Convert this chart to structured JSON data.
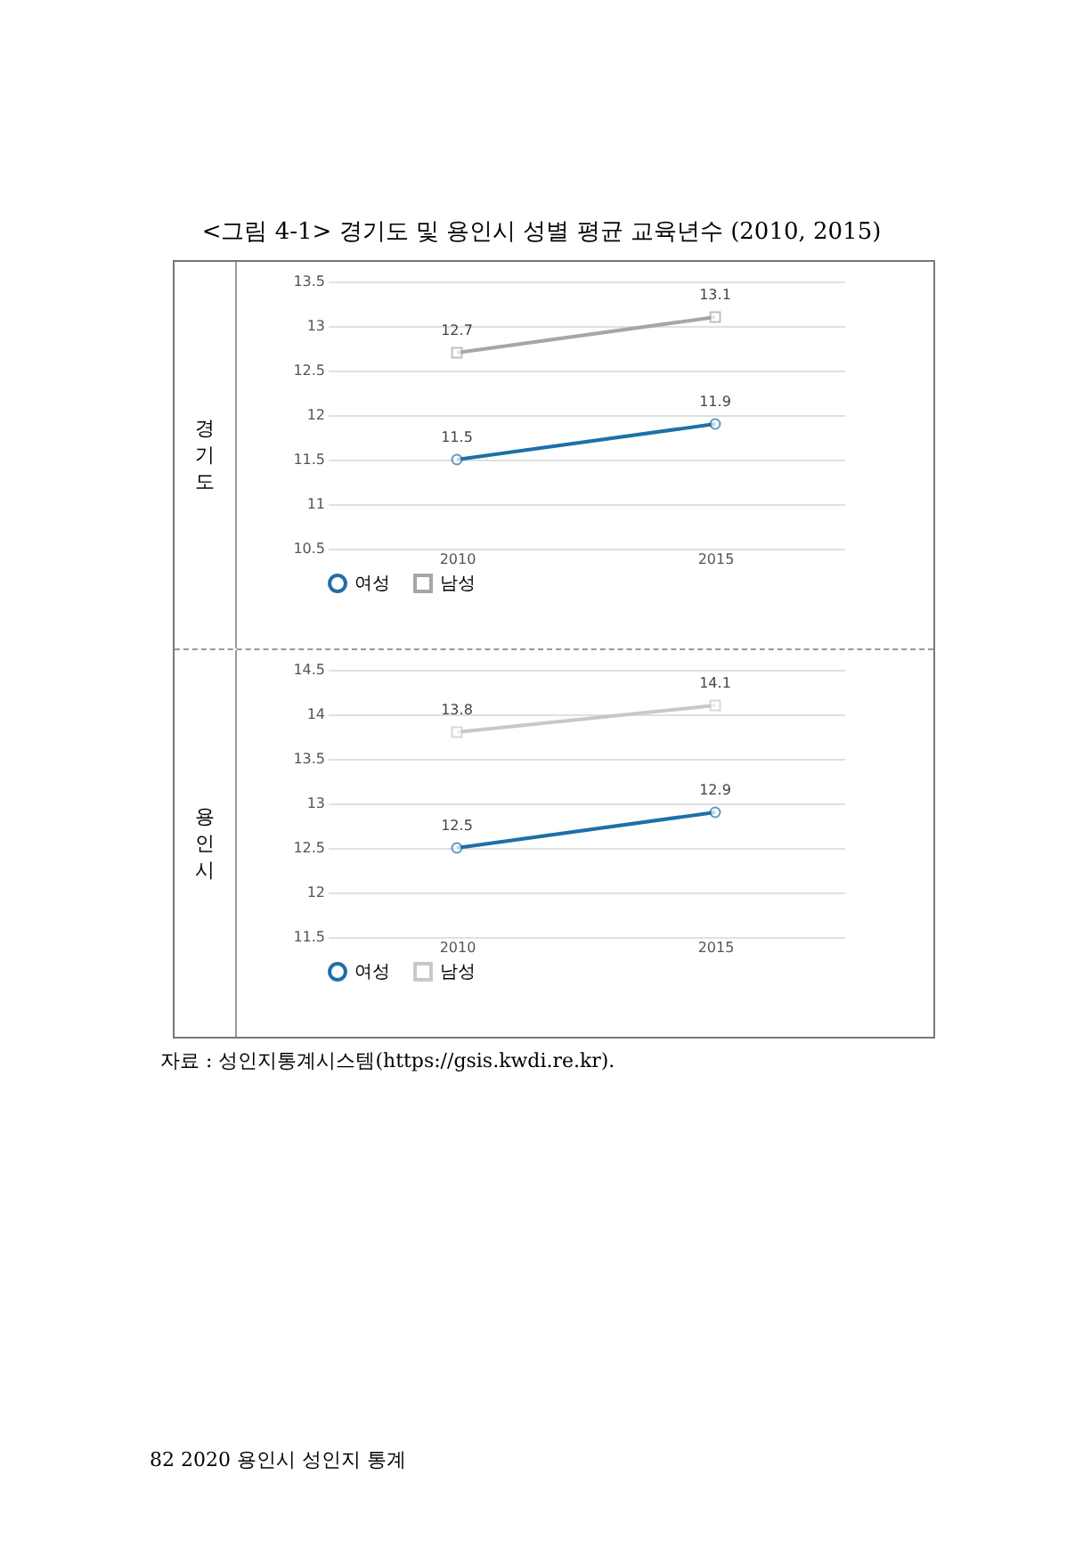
{
  "chart_data": [
    {
      "type": "line",
      "title": "<그림 4-1> 경기도 및 용인시 성별 평균 교육년수 (2010, 2015)",
      "ylabel": "경기도",
      "categories": [
        "2010",
        "2015"
      ],
      "series": [
        {
          "name": "여성",
          "color": "#1f6fa8",
          "values": [
            11.5,
            11.9
          ]
        },
        {
          "name": "남성",
          "color": "#a6a6a6",
          "values": [
            12.7,
            13.1
          ],
          "marker": "square"
        }
      ],
      "ylim": [
        10.5,
        13.5
      ],
      "yticks": [
        10.5,
        11,
        11.5,
        12,
        12.5,
        13,
        13.5
      ],
      "grid": "y",
      "legend": "bottom",
      "marker": "circle",
      "data_labels": true
    },
    {
      "type": "line",
      "ylabel": "용인시",
      "categories": [
        "2010",
        "2015"
      ],
      "series": [
        {
          "name": "여성",
          "color": "#1f6fa8",
          "values": [
            12.5,
            12.9
          ]
        },
        {
          "name": "남성",
          "color": "#c8c8c8",
          "values": [
            13.8,
            14.1
          ],
          "marker": "square"
        }
      ],
      "ylim": [
        11.5,
        14.5
      ],
      "yticks": [
        11.5,
        12,
        12.5,
        13,
        13.5,
        14,
        14.5
      ],
      "grid": "y",
      "legend": "bottom",
      "marker": "circle",
      "data_labels": true,
      "annotations": [
        "자료 : 성인지통계시스템(https://gsis.kwdi.re.kr).",
        "82 2020 용인시 성인지 통계"
      ]
    }
  ]
}
